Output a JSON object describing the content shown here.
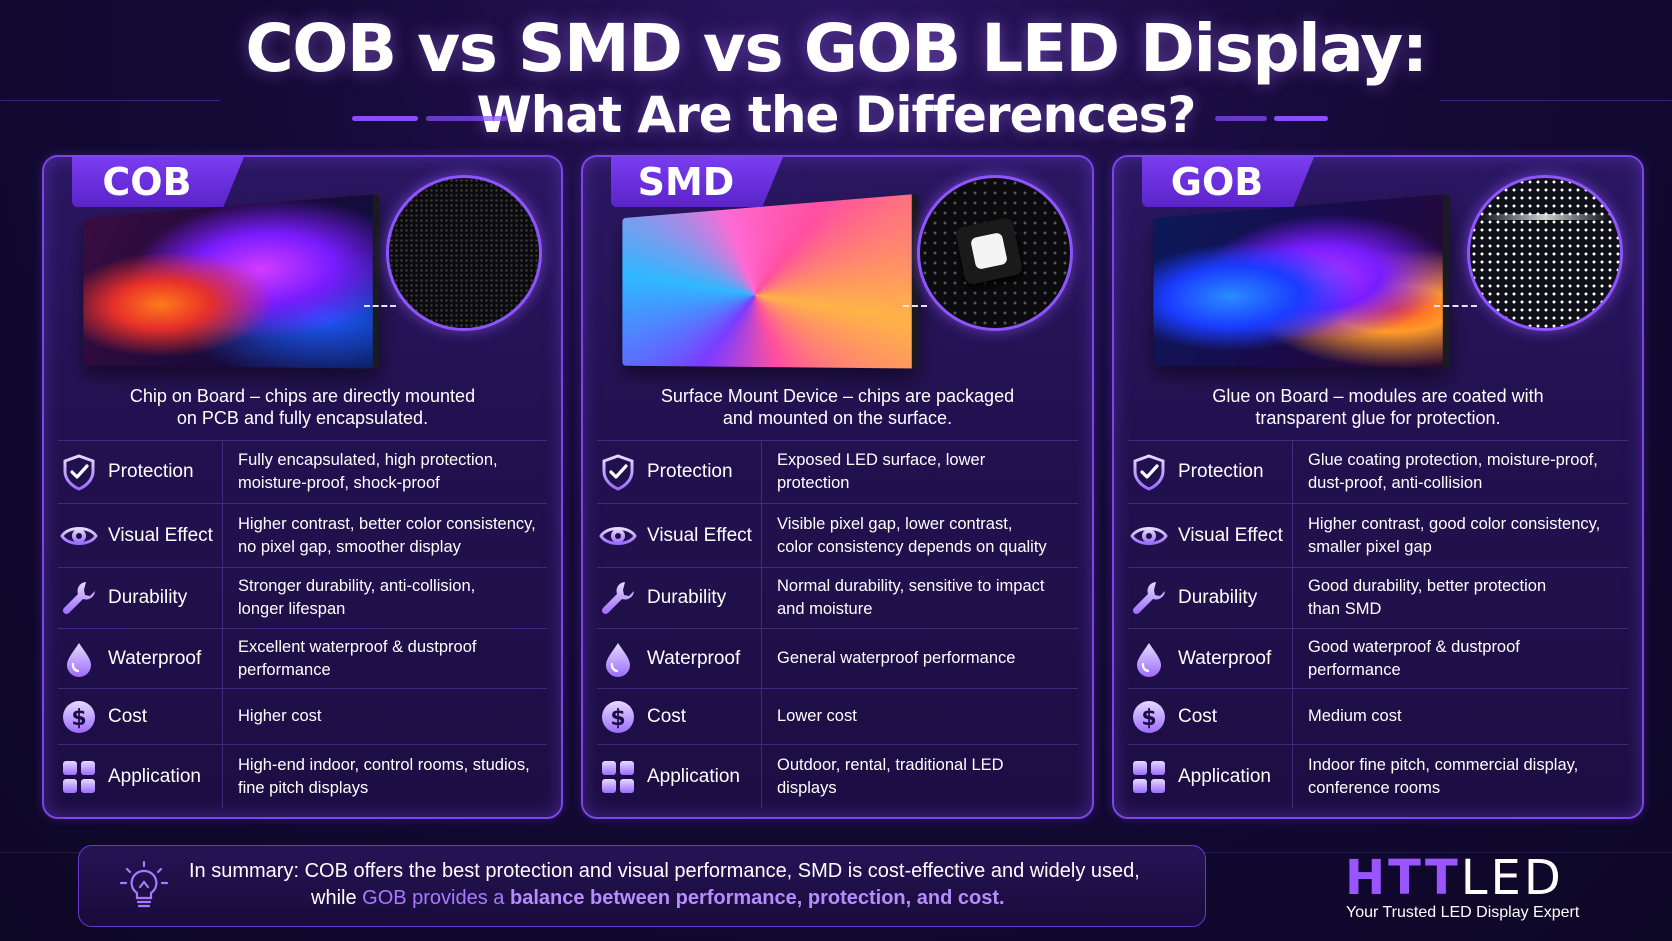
{
  "title_line1": "COB vs SMD vs GOB LED Display:",
  "title_line2": "What Are the Differences?",
  "row_labels": [
    "Protection",
    "Visual Effect",
    "Durability",
    "Waterproof",
    "Cost",
    "Application"
  ],
  "row_icons": [
    "shield-check-icon",
    "eye-icon",
    "wrench-icon",
    "water-drop-icon",
    "dollar-icon",
    "grid-icon"
  ],
  "cards": [
    {
      "name": "COB",
      "desc1": "Chip on Board – chips are directly mounted",
      "desc2": "on PCB and fully encapsulated.",
      "values": [
        [
          "Fully encapsulated, high protection,",
          "moisture-proof, shock-proof"
        ],
        [
          "Higher contrast, better color consistency,",
          "no pixel gap, smoother display"
        ],
        [
          "Stronger durability, anti-collision,",
          "longer lifespan"
        ],
        [
          "Excellent waterproof & dustproof",
          "performance"
        ],
        [
          "Higher cost",
          ""
        ],
        [
          "High-end indoor, control rooms, studios,",
          "fine pitch displays"
        ]
      ]
    },
    {
      "name": "SMD",
      "desc1": "Surface Mount Device – chips are packaged",
      "desc2": "and mounted on the surface.",
      "values": [
        [
          "Exposed LED surface, lower",
          "protection"
        ],
        [
          "Visible pixel gap, lower contrast,",
          "color consistency depends on quality"
        ],
        [
          "Normal durability, sensitive to impact",
          "and moisture"
        ],
        [
          "General waterproof performance",
          ""
        ],
        [
          "Lower cost",
          ""
        ],
        [
          "Outdoor, rental, traditional LED",
          "displays"
        ]
      ]
    },
    {
      "name": "GOB",
      "desc1": "Glue on Board – modules are coated with",
      "desc2": "transparent glue for protection.",
      "values": [
        [
          "Glue coating protection, moisture-proof,",
          "dust-proof, anti-collision"
        ],
        [
          "Higher contrast, good color consistency,",
          "smaller pixel gap"
        ],
        [
          "Good durability, better protection",
          "than SMD"
        ],
        [
          "Good waterproof & dustproof",
          "performance"
        ],
        [
          "Medium cost",
          ""
        ],
        [
          "Indoor fine pitch, commercial display,",
          "conference rooms"
        ]
      ]
    }
  ],
  "summary": {
    "icon": "lightbulb-icon",
    "line1": "In summary: COB offers the best protection and visual performance, SMD is cost-effective and widely used,",
    "line2_pre": "while ",
    "line2_gob": "GOB",
    "line2_mid": " provides a ",
    "line2_b1": "balance between performance, protection, and cost."
  },
  "logo": {
    "part1": "HTT",
    "part2": "LED",
    "tagline": "Your Trusted LED Display Expert"
  },
  "colors": {
    "accent": "#7b45e8",
    "highlight": "#a77bff",
    "bg": "#150a38"
  }
}
